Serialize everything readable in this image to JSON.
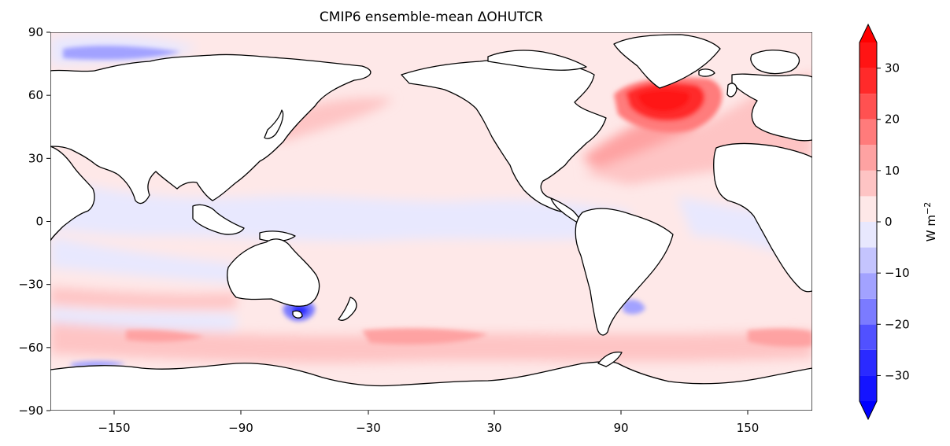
{
  "title": "CMIP6 ensemble-mean ΔOHUTCR",
  "map": {
    "projection": "PlateCarree",
    "central_longitude": -30,
    "lon_range": [
      -210,
      150
    ],
    "lat_range": [
      -90,
      90
    ],
    "coastlines": true,
    "land_color": "#ffffff",
    "field": "ensemble-mean change in ocean heat uptake",
    "field_pattern_description": [
      "strong warming (>30) in subpolar North Atlantic / Labrador-Irminger Seas",
      "moderate warming along Gulf Stream and Kuroshio extensions",
      "warming band in Southern Ocean around 45-60S",
      "weak cooling in equatorial and tropical bands",
      "cooling patch south of Australia near Tasmania and near Brazil-Malvinas confluence",
      "cooling patches in far North Pacific/Arctic edge and near Antarctic coast"
    ]
  },
  "x_ticks": [
    "−150",
    "−90",
    "−30",
    "30",
    "90",
    "150"
  ],
  "x_tick_values": [
    -150,
    -90,
    -30,
    30,
    90,
    150
  ],
  "y_ticks": [
    "90",
    "60",
    "30",
    "0",
    "−30",
    "−60",
    "−90"
  ],
  "y_tick_values": [
    90,
    60,
    30,
    0,
    -30,
    -60,
    -90
  ],
  "colorbar": {
    "label": "W m",
    "label_sup": "−2",
    "levels": [
      -35,
      -30,
      -25,
      -20,
      -15,
      -10,
      -5,
      0,
      5,
      10,
      15,
      20,
      25,
      30,
      35
    ],
    "extend": "both",
    "tick_labels": [
      "30",
      "20",
      "10",
      "0",
      "−10",
      "−20",
      "−30"
    ],
    "tick_values": [
      30,
      20,
      10,
      0,
      -10,
      -20,
      -30
    ],
    "colors_low_to_high": [
      "#1414ff",
      "#2a2aff",
      "#5151ff",
      "#7b7bff",
      "#a2a2ff",
      "#c4c4fe",
      "#e8e8fe",
      "#fee8e8",
      "#fec4c4",
      "#fea2a2",
      "#ff7b7b",
      "#ff5151",
      "#ff2a2a",
      "#ff1414"
    ],
    "under_color": "#0000ff",
    "over_color": "#ff0000"
  }
}
